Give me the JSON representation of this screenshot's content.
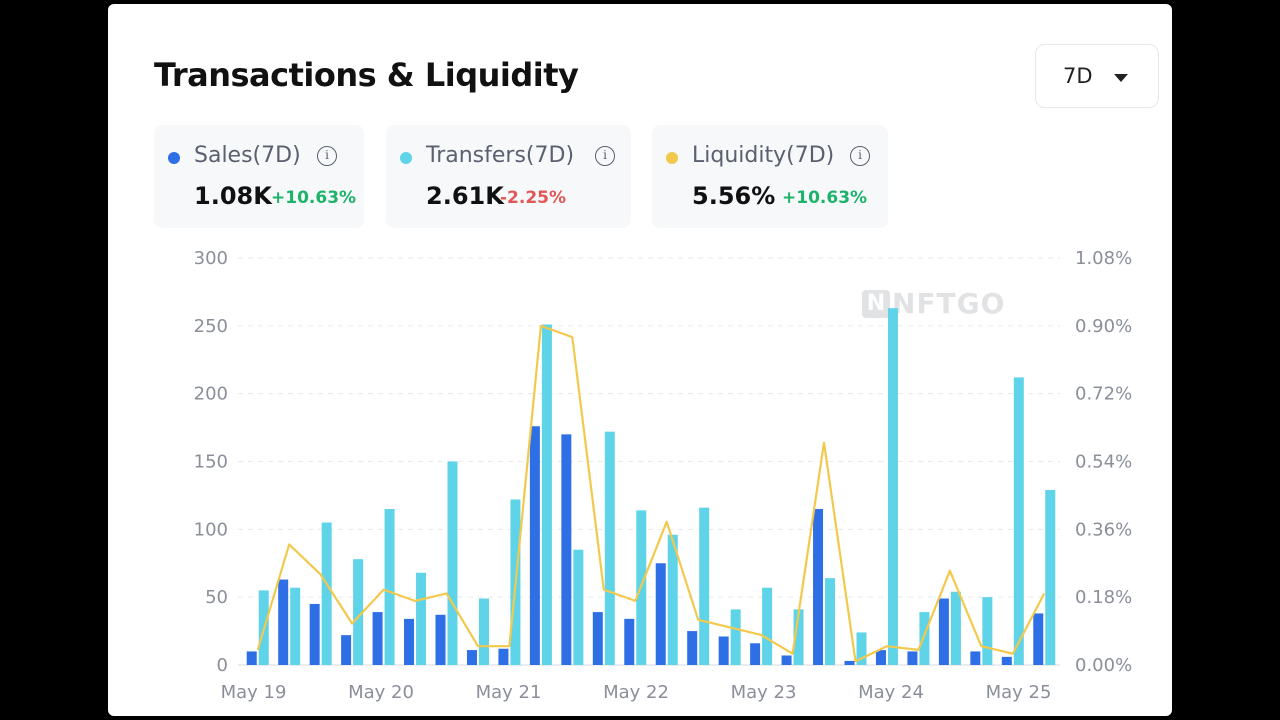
{
  "card": {
    "title": "Transactions & Liquidity",
    "range": {
      "selected": "7D"
    }
  },
  "stats": [
    {
      "label": "Sales(7D)",
      "value": "1.08K",
      "change": "+10.63%",
      "trend": "up",
      "color": "#2e6fe6"
    },
    {
      "label": "Transfers(7D)",
      "value": "2.61K",
      "change": "-2.25%",
      "trend": "down",
      "color": "#5fd3e8"
    },
    {
      "label": "Liquidity(7D)",
      "value": "5.56%",
      "change": "+10.63%",
      "trend": "up",
      "color": "#f2c94c"
    }
  ],
  "watermark": {
    "mark": "N",
    "text": "NFTGO"
  },
  "colors": {
    "sales": "#2e6fe6",
    "transfers": "#5fd3e8",
    "liquidity": "#f2c94c",
    "up": "#1db36b",
    "down": "#e05757",
    "grid": "#e8eaee",
    "tick": "#8a8f99"
  },
  "chart_data": {
    "type": "bar",
    "title": "Transactions & Liquidity",
    "x_tick_labels": [
      "May 19",
      "May 20",
      "May 21",
      "May 22",
      "May 23",
      "May 24",
      "May 25"
    ],
    "points_per_day": 4,
    "ylim_left": [
      0,
      300
    ],
    "y_ticks_left": [
      "300",
      "250",
      "200",
      "150",
      "100",
      "50",
      "0"
    ],
    "ylim_right": [
      0,
      1.08
    ],
    "y_ticks_right": [
      "1.08%",
      "0.90%",
      "0.72%",
      "0.54%",
      "0.36%",
      "0.18%",
      "0.00%"
    ],
    "grid": true,
    "series": [
      {
        "name": "Sales",
        "type": "bar",
        "axis": "left",
        "values": [
          10,
          63,
          45,
          22,
          39,
          34,
          37,
          11,
          12,
          176,
          170,
          39,
          34,
          75,
          25,
          21,
          16,
          7,
          115,
          3,
          11,
          10,
          49,
          10,
          6,
          38
        ]
      },
      {
        "name": "Transfers",
        "type": "bar",
        "axis": "left",
        "values": [
          55,
          57,
          105,
          78,
          115,
          68,
          150,
          49,
          122,
          251,
          85,
          172,
          114,
          96,
          116,
          41,
          57,
          41,
          64,
          24,
          263,
          39,
          54,
          50,
          212,
          129
        ]
      },
      {
        "name": "Liquidity",
        "type": "line",
        "axis": "right",
        "unit": "%",
        "values": [
          0.04,
          0.32,
          0.24,
          0.11,
          0.2,
          0.17,
          0.19,
          0.05,
          0.05,
          0.9,
          0.87,
          0.2,
          0.17,
          0.38,
          0.12,
          0.1,
          0.08,
          0.03,
          0.59,
          0.01,
          0.05,
          0.04,
          0.25,
          0.05,
          0.03,
          0.19
        ]
      }
    ]
  }
}
